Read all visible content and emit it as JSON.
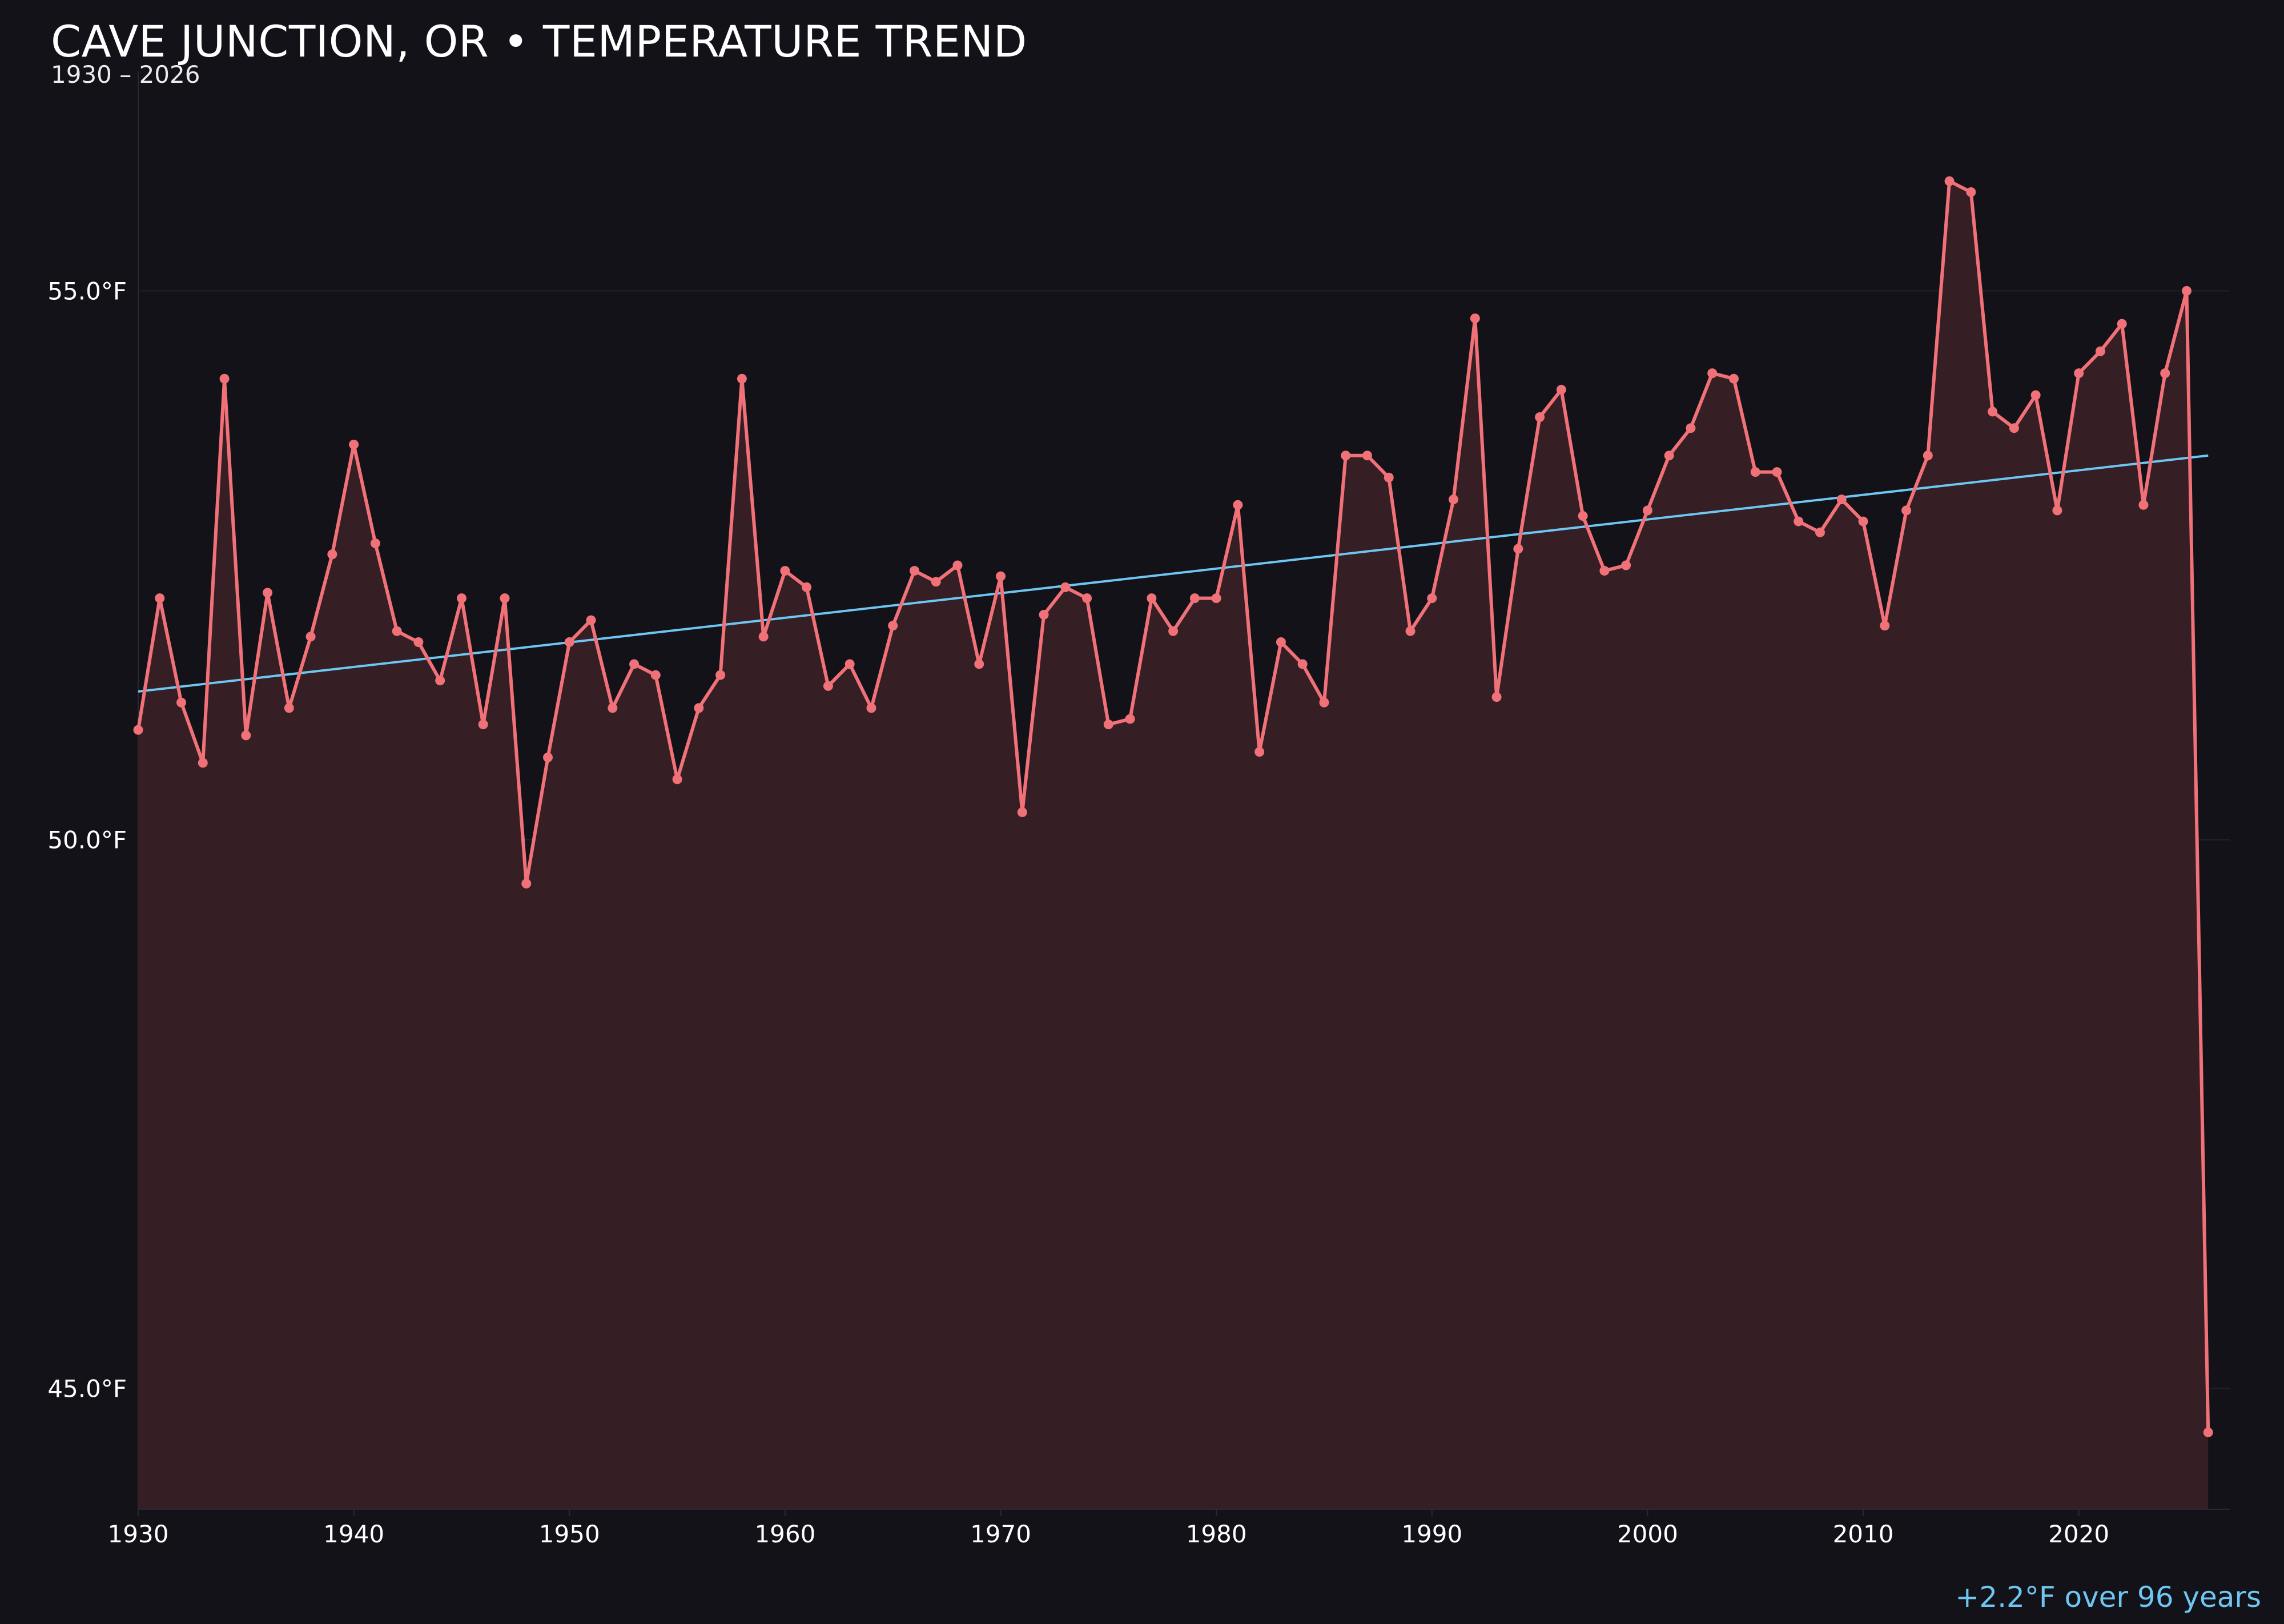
{
  "title": "CAVE JUNCTION, OR • TEMPERATURE TREND",
  "subtitle": "1930 – 2026",
  "footer_note": "+2.2°F over 96 years",
  "colors": {
    "background": "#131218",
    "line": "#f07178",
    "area": "#361e25",
    "trend": "#6ec6f2",
    "grid": "#22212a",
    "text": "#ffffff"
  },
  "chart_data": {
    "type": "line",
    "x": [
      1930,
      1931,
      1932,
      1933,
      1934,
      1935,
      1936,
      1937,
      1938,
      1939,
      1940,
      1941,
      1942,
      1943,
      1944,
      1945,
      1946,
      1947,
      1948,
      1949,
      1950,
      1951,
      1952,
      1953,
      1954,
      1955,
      1956,
      1957,
      1958,
      1959,
      1960,
      1961,
      1962,
      1963,
      1964,
      1965,
      1966,
      1967,
      1968,
      1969,
      1970,
      1971,
      1972,
      1973,
      1974,
      1975,
      1976,
      1977,
      1978,
      1979,
      1980,
      1981,
      1982,
      1983,
      1984,
      1985,
      1986,
      1987,
      1988,
      1989,
      1990,
      1991,
      1992,
      1993,
      1994,
      1995,
      1996,
      1997,
      1998,
      1999,
      2000,
      2001,
      2002,
      2003,
      2004,
      2005,
      2006,
      2007,
      2008,
      2009,
      2010,
      2011,
      2012,
      2013,
      2014,
      2015,
      2016,
      2017,
      2018,
      2019,
      2020,
      2021,
      2022,
      2023,
      2024,
      2025,
      2026
    ],
    "series": [
      {
        "name": "",
        "values": [
          51.0,
          52.2,
          51.25,
          50.7,
          54.2,
          50.95,
          52.25,
          51.2,
          51.85,
          52.6,
          53.6,
          52.7,
          51.9,
          51.8,
          51.45,
          52.2,
          51.05,
          52.2,
          49.6,
          50.75,
          51.8,
          52.0,
          51.2,
          51.6,
          51.5,
          50.55,
          51.2,
          51.5,
          54.2,
          51.85,
          52.45,
          52.3,
          51.4,
          51.6,
          51.2,
          51.95,
          52.45,
          52.35,
          52.5,
          51.6,
          52.4,
          50.25,
          52.05,
          52.3,
          52.2,
          51.05,
          51.1,
          52.2,
          51.9,
          52.2,
          52.2,
          53.05,
          50.8,
          51.8,
          51.6,
          51.25,
          53.5,
          53.5,
          53.3,
          51.9,
          52.2,
          53.1,
          54.75,
          51.3,
          52.65,
          53.85,
          54.1,
          52.95,
          52.45,
          52.5,
          53.0,
          53.5,
          53.75,
          54.25,
          54.2,
          53.35,
          53.35,
          52.9,
          52.8,
          53.1,
          52.9,
          51.95,
          53.0,
          53.5,
          56.0,
          55.9,
          53.9,
          53.75,
          54.05,
          53.0,
          54.25,
          54.45,
          54.7,
          53.05,
          54.25,
          55.0,
          44.6
        ]
      }
    ],
    "trend": {
      "start": 51.35,
      "end": 53.5
    },
    "xlim": [
      1930,
      2027
    ],
    "ylim": [
      43.9,
      57.0
    ],
    "xticks": [
      1930,
      1940,
      1950,
      1960,
      1970,
      1980,
      1990,
      2000,
      2010,
      2020
    ],
    "yticks": [
      45.0,
      50.0,
      55.0
    ],
    "ytick_labels": [
      "45.0°F",
      "50.0°F",
      "55.0°F"
    ],
    "grid": true,
    "xlabel": "",
    "ylabel": ""
  }
}
